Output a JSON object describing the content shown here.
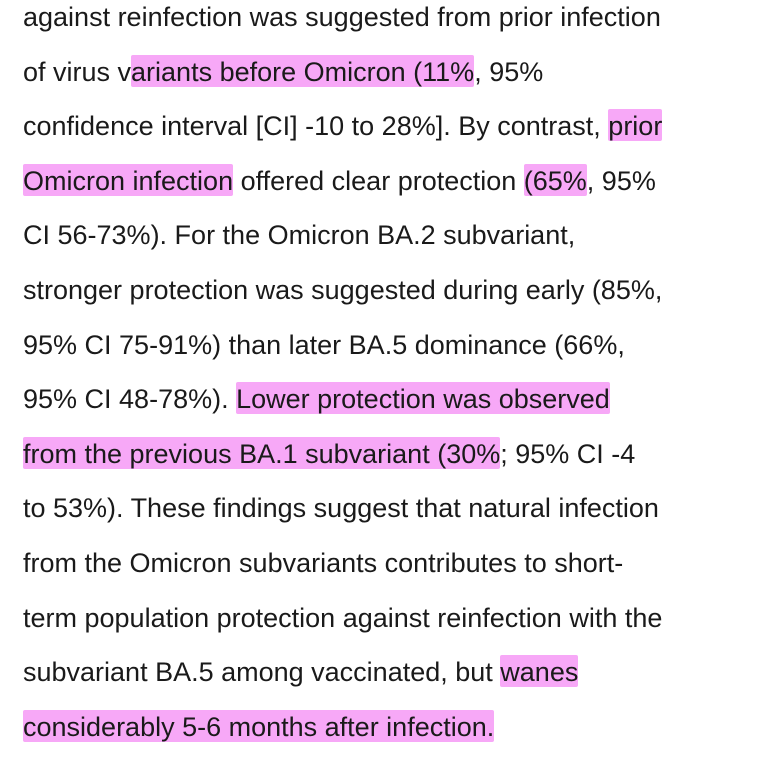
{
  "passage": {
    "lines": [
      [
        {
          "t": "against reinfection was suggested from prior infection",
          "h": false
        }
      ],
      [
        {
          "t": "of virus v",
          "h": false
        },
        {
          "t": "ariants before Omicron (11%",
          "h": true
        },
        {
          "t": ", 95%",
          "h": false
        }
      ],
      [
        {
          "t": "confidence interval [CI] -10 to 28%]. By contrast, ",
          "h": false
        },
        {
          "t": "prior",
          "h": true
        }
      ],
      [
        {
          "t": "Omicron infection",
          "h": true
        },
        {
          "t": " offered clear protection ",
          "h": false
        },
        {
          "t": "(65%",
          "h": true
        },
        {
          "t": ", 95%",
          "h": false
        }
      ],
      [
        {
          "t": "CI 56-73%). For the Omicron BA.2 subvariant,",
          "h": false
        }
      ],
      [
        {
          "t": "stronger protection was suggested during early (85%,",
          "h": false
        }
      ],
      [
        {
          "t": "95% CI 75-91%) than later BA.5 dominance (66%,",
          "h": false
        }
      ],
      [
        {
          "t": "95% CI 48-78%). ",
          "h": false
        },
        {
          "t": "Lower protection was observed",
          "h": true
        }
      ],
      [
        {
          "t": "from the previous BA.1 subvariant (30%",
          "h": true
        },
        {
          "t": "; 95% CI -4",
          "h": false
        }
      ],
      [
        {
          "t": "to 53%). These findings suggest that natural infection",
          "h": false
        }
      ],
      [
        {
          "t": "from the Omicron subvariants contributes to short-",
          "h": false
        }
      ],
      [
        {
          "t": "term population protection against reinfection with the",
          "h": false
        }
      ],
      [
        {
          "t": "subvariant BA.5 among vaccinated, but ",
          "h": false
        },
        {
          "t": "wanes",
          "h": true
        }
      ],
      [
        {
          "t": "considerably 5-6 months after infection.",
          "h": true
        }
      ]
    ]
  },
  "colors": {
    "text": "#1a1a1a",
    "highlight": "#f7a8f7",
    "background": "#ffffff"
  }
}
